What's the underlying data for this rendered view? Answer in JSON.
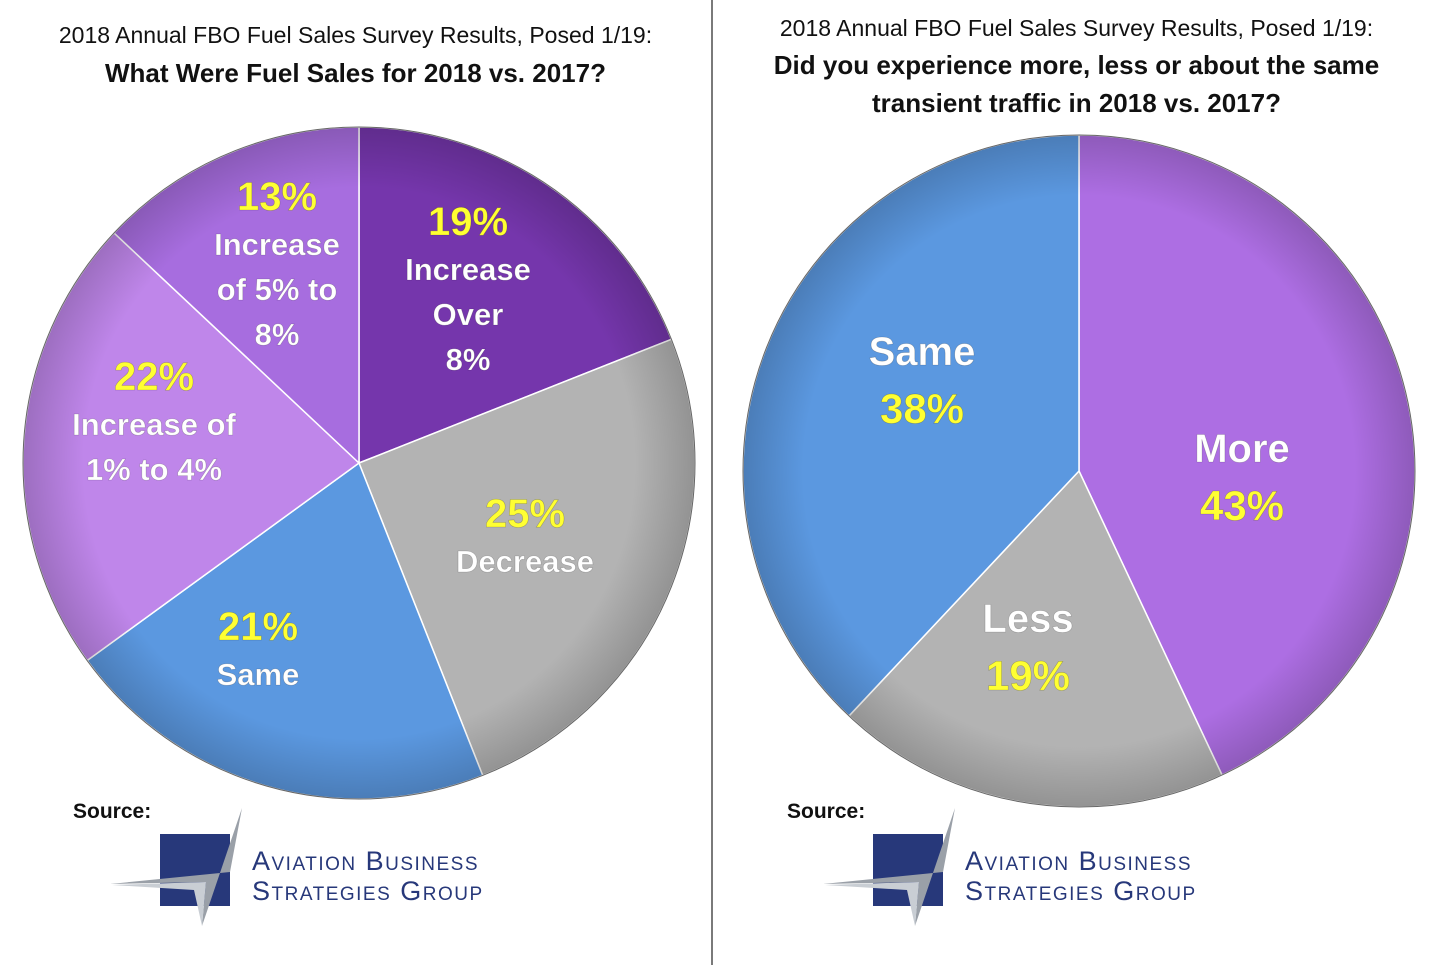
{
  "chart_data": [
    {
      "type": "pie",
      "title": "2018 Annual FBO Fuel Sales Survey Results, Posed 1/19:",
      "subtitle": "What Were Fuel Sales for 2018 vs. 2017?",
      "slices": [
        {
          "pct_label": "19%",
          "desc": "Increase Over 8%",
          "lines": [
            "Increase",
            "Over",
            "8%"
          ],
          "value": 19,
          "color": "#7536ac"
        },
        {
          "pct_label": "25%",
          "desc": "Decrease",
          "lines": [
            "Decrease"
          ],
          "value": 25,
          "color": "#b3b3b3"
        },
        {
          "pct_label": "21%",
          "desc": "Same",
          "lines": [
            "Same"
          ],
          "value": 21,
          "color": "#5b98e0"
        },
        {
          "pct_label": "22%",
          "desc": "Increase of 1% to 4%",
          "lines": [
            "Increase of",
            "1% to 4%"
          ],
          "value": 22,
          "color": "#bf86ea"
        },
        {
          "pct_label": "13%",
          "desc": "Increase of 5% to 8%",
          "lines": [
            "Increase",
            "of 5% to",
            "8%"
          ],
          "value": 13,
          "color": "#a76ddf"
        }
      ]
    },
    {
      "type": "pie",
      "title": "2018 Annual FBO Fuel Sales Survey Results, Posed 1/19:",
      "subtitle": "Did you experience more, less or about the same transient  traffic in 2018 vs. 2017?",
      "subtitle_lines": [
        "Did you experience more, less or about the same",
        "transient  traffic in 2018 vs. 2017?"
      ],
      "slices": [
        {
          "pct_label": "43%",
          "desc": "More",
          "lines": [
            "More"
          ],
          "value": 43,
          "color": "#ad6ee3"
        },
        {
          "pct_label": "19%",
          "desc": "Less",
          "lines": [
            "Less"
          ],
          "value": 19,
          "color": "#b3b3b3"
        },
        {
          "pct_label": "38%",
          "desc": "Same",
          "lines": [
            "Same"
          ],
          "value": 38,
          "color": "#5b98e0"
        }
      ]
    }
  ],
  "source": {
    "label": "Source:",
    "logo_line1": "Aviation Business",
    "logo_line2": "Strategies Group",
    "logo_color": "#27387a"
  },
  "colors": {
    "percent_label": "#ffff33",
    "desc_label": "#ffffff"
  }
}
